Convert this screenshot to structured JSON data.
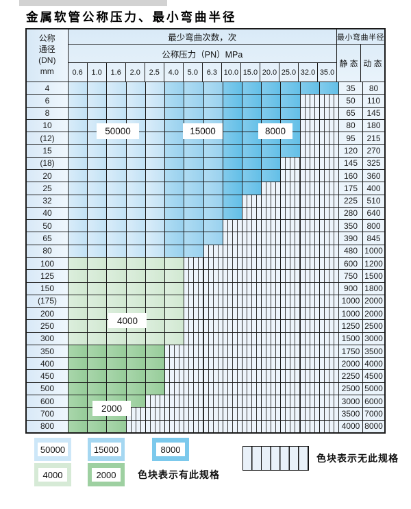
{
  "page": {
    "title": "金属软管公称压力、最小弯曲半径"
  },
  "table": {
    "header": {
      "dn_lines": [
        "公称",
        "通径",
        "(DN)",
        "mm"
      ],
      "cycles_label": "最少弯曲次数，次",
      "pressure_label": "公称压力（PN）MPa",
      "radius_label": "最小弯曲半径",
      "static_label": "静 态",
      "dynamic_label": "动 态",
      "pressures": [
        "0.6",
        "1.0",
        "1.6",
        "2.0",
        "2.5",
        "4.0",
        "5.0",
        "6.3",
        "10.0",
        "15.0",
        "20.0",
        "25.0",
        "32.0",
        "35.0"
      ]
    },
    "rows": [
      {
        "dn": "4",
        "colored": 14,
        "band": "blue",
        "static": "35",
        "dynamic": "80"
      },
      {
        "dn": "6",
        "colored": 12,
        "band": "blue",
        "static": "50",
        "dynamic": "110"
      },
      {
        "dn": "8",
        "colored": 12,
        "band": "blue",
        "static": "65",
        "dynamic": "145"
      },
      {
        "dn": "10",
        "colored": 12,
        "band": "blue",
        "static": "80",
        "dynamic": "180"
      },
      {
        "dn": "(12)",
        "colored": 12,
        "band": "blue",
        "static": "95",
        "dynamic": "215"
      },
      {
        "dn": "15",
        "colored": 12,
        "band": "blue",
        "static": "120",
        "dynamic": "270"
      },
      {
        "dn": "(18)",
        "colored": 11,
        "band": "blue",
        "static": "145",
        "dynamic": "325"
      },
      {
        "dn": "20",
        "colored": 11,
        "band": "blue",
        "static": "160",
        "dynamic": "360"
      },
      {
        "dn": "25",
        "colored": 10,
        "band": "blue",
        "static": "175",
        "dynamic": "400"
      },
      {
        "dn": "32",
        "colored": 9,
        "band": "blue",
        "static": "225",
        "dynamic": "510"
      },
      {
        "dn": "40",
        "colored": 9,
        "band": "blue",
        "static": "280",
        "dynamic": "640"
      },
      {
        "dn": "50",
        "colored": 8,
        "band": "blue",
        "static": "350",
        "dynamic": "800"
      },
      {
        "dn": "65",
        "colored": 8,
        "band": "blue",
        "static": "390",
        "dynamic": "845"
      },
      {
        "dn": "80",
        "colored": 7,
        "band": "blue",
        "static": "480",
        "dynamic": "1000"
      },
      {
        "dn": "100",
        "colored": 6,
        "band": "green4000",
        "static": "600",
        "dynamic": "1200"
      },
      {
        "dn": "125",
        "colored": 6,
        "band": "green4000",
        "static": "750",
        "dynamic": "1500"
      },
      {
        "dn": "150",
        "colored": 6,
        "band": "green4000",
        "static": "900",
        "dynamic": "1800"
      },
      {
        "dn": "(175)",
        "colored": 6,
        "band": "green4000",
        "static": "1000",
        "dynamic": "2000"
      },
      {
        "dn": "200",
        "colored": 6,
        "band": "green4000",
        "static": "1000",
        "dynamic": "2000"
      },
      {
        "dn": "250",
        "colored": 6,
        "band": "green4000",
        "static": "1250",
        "dynamic": "2500"
      },
      {
        "dn": "300",
        "colored": 6,
        "band": "green4000",
        "static": "1500",
        "dynamic": "3000"
      },
      {
        "dn": "350",
        "colored": 5,
        "band": "green2000",
        "static": "1750",
        "dynamic": "3500"
      },
      {
        "dn": "400",
        "colored": 5,
        "band": "green2000",
        "static": "2000",
        "dynamic": "4000"
      },
      {
        "dn": "450",
        "colored": 5,
        "band": "green2000",
        "static": "2250",
        "dynamic": "4500"
      },
      {
        "dn": "500",
        "colored": 5,
        "band": "green2000",
        "static": "2500",
        "dynamic": "5000"
      },
      {
        "dn": "600",
        "colored": 4,
        "band": "green2000",
        "static": "3000",
        "dynamic": "6000"
      },
      {
        "dn": "700",
        "colored": 3,
        "band": "green2000",
        "static": "3500",
        "dynamic": "7000"
      },
      {
        "dn": "800",
        "colored": 3,
        "band": "green2000",
        "static": "4000",
        "dynamic": "8000"
      }
    ],
    "cycle_labels": {
      "v50000": "50000",
      "v15000": "15000",
      "v8000": "8000",
      "v4000": "4000",
      "v2000": "2000"
    }
  },
  "legend": {
    "items": [
      {
        "label": "50000",
        "color": "#cde7f8"
      },
      {
        "label": "15000",
        "color": "#a5d7f1"
      },
      {
        "label": "8000",
        "color": "#7cc9ec"
      },
      {
        "label": "4000",
        "color": "#d6ead6"
      },
      {
        "label": "2000",
        "color": "#9ed0a1"
      }
    ],
    "has_spec_text": "色块表示有此规格",
    "no_spec_text": "色块表示无此规格"
  },
  "colors": {
    "blue_50000": "#c2e2f5",
    "blue_15000": "#99d1ee",
    "blue_8000": "#63bfe7",
    "green_4000": "#d1e8d1",
    "green_2000": "#96cc99",
    "header_bg": "#d9eaf7",
    "no_spec_bg": "#edf4fb",
    "grid_line": "#1b1b1b"
  }
}
